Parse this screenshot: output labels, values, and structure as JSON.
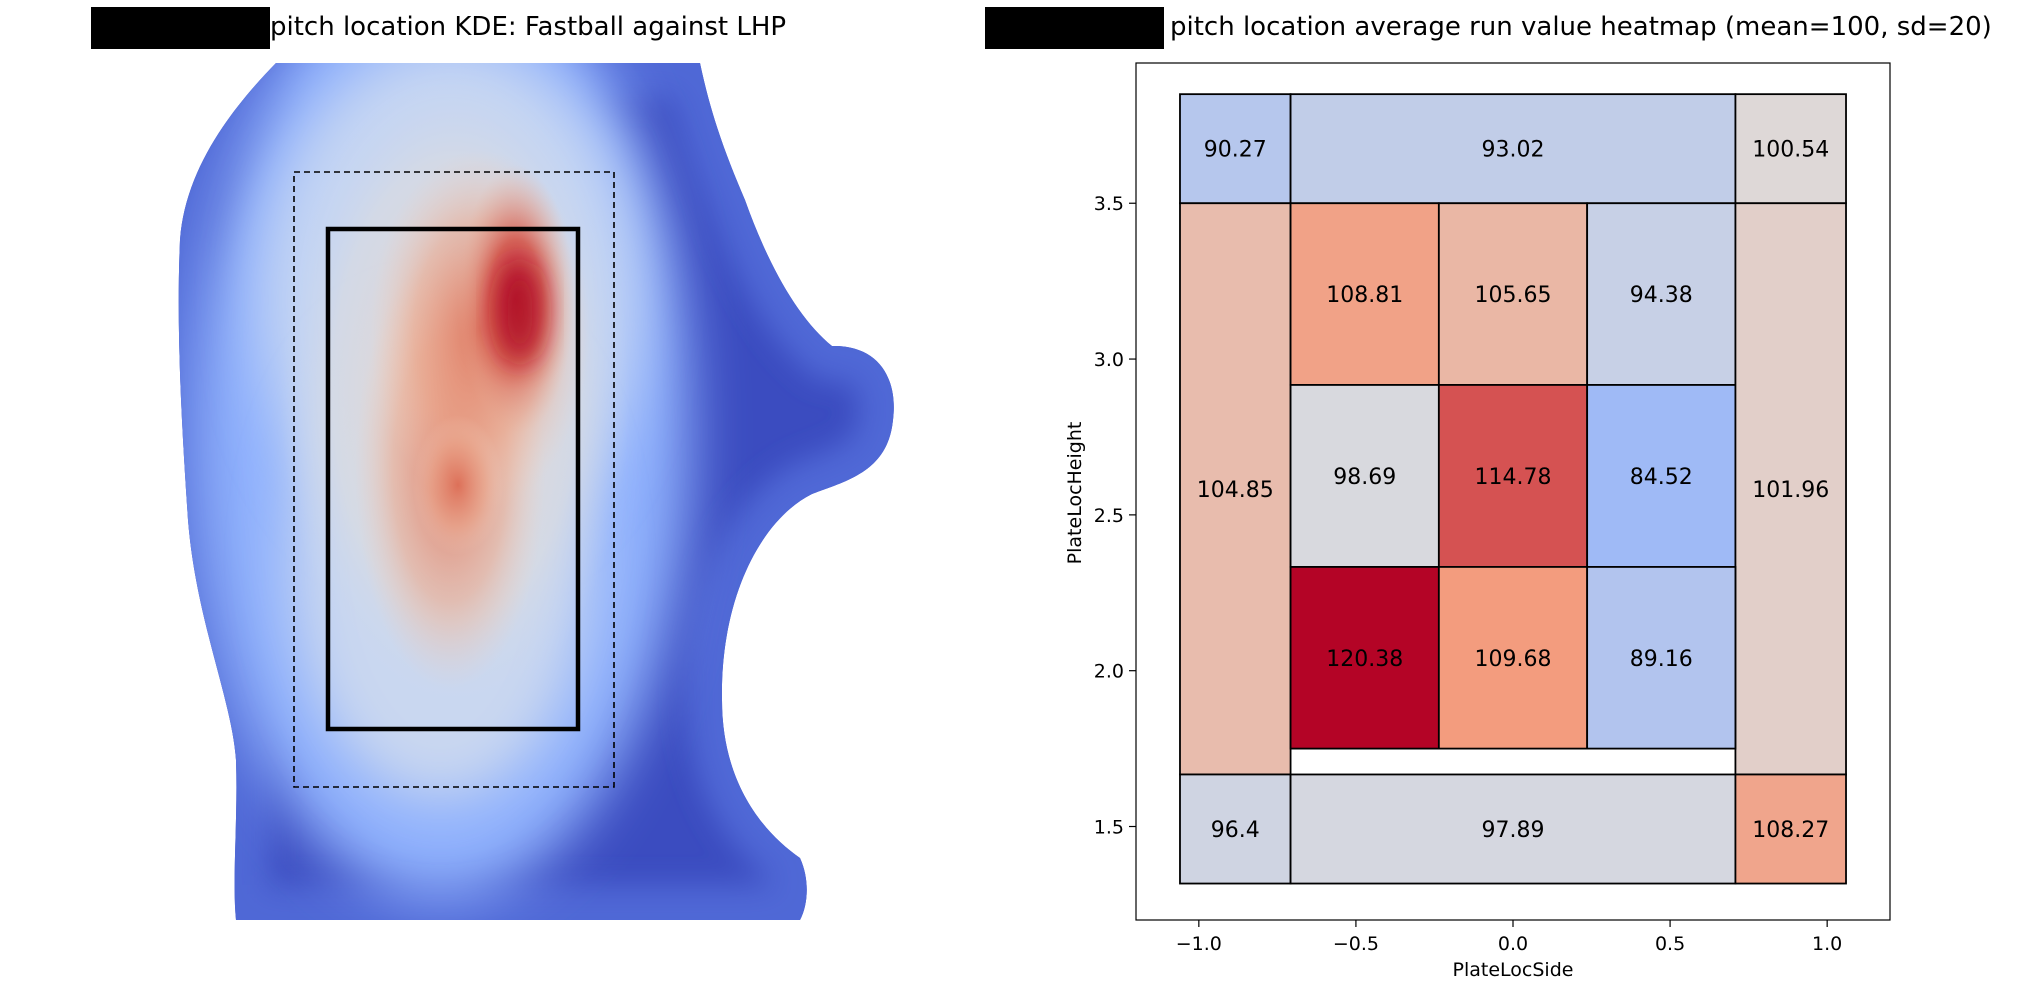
{
  "chart_data": [
    {
      "type": "kde",
      "title": "pitch location KDE: Fastball against LHP",
      "title_prefix_redacted": true,
      "colormap": "coolwarm",
      "strike_zone": true,
      "shadow_zone": true,
      "axes_visible": false
    },
    {
      "type": "heatmap",
      "title": "pitch location average run value heatmap (mean=100, sd=20)",
      "title_prefix_redacted": true,
      "xlabel": "PlateLocSide",
      "ylabel": "PlateLocHeight",
      "xlim": [
        -1.2,
        1.2
      ],
      "ylim": [
        1.2,
        3.95
      ],
      "xticks": [
        "−1.0",
        "−0.5",
        "0.0",
        "0.5",
        "1.0"
      ],
      "xtick_values": [
        -1.0,
        -0.5,
        0.0,
        0.5,
        1.0
      ],
      "yticks": [
        "1.5",
        "2.0",
        "2.5",
        "3.0",
        "3.5"
      ],
      "ytick_values": [
        1.5,
        2.0,
        2.5,
        3.0,
        3.5
      ],
      "colormap": "coolwarm",
      "color_scale": {
        "min": 60,
        "center": 100,
        "max": 120
      },
      "cells": [
        {
          "zone": "11",
          "x": [
            -1.06,
            -0.708
          ],
          "y": [
            3.5,
            3.85
          ],
          "value": 90.27
        },
        {
          "zone": "top",
          "x": [
            -0.708,
            0.708
          ],
          "y": [
            3.5,
            3.85
          ],
          "value": 93.02
        },
        {
          "zone": "12",
          "x": [
            0.708,
            1.06
          ],
          "y": [
            3.5,
            3.85
          ],
          "value": 100.54
        },
        {
          "zone": "left",
          "x": [
            -1.06,
            -0.708
          ],
          "y": [
            1.667,
            3.5
          ],
          "value": 104.85
        },
        {
          "zone": "1",
          "x": [
            -0.708,
            -0.236
          ],
          "y": [
            2.917,
            3.5
          ],
          "value": 108.81
        },
        {
          "zone": "2",
          "x": [
            -0.236,
            0.236
          ],
          "y": [
            2.917,
            3.5
          ],
          "value": 105.65
        },
        {
          "zone": "3",
          "x": [
            0.236,
            0.708
          ],
          "y": [
            2.917,
            3.5
          ],
          "value": 94.38
        },
        {
          "zone": "4",
          "x": [
            -0.708,
            -0.236
          ],
          "y": [
            2.333,
            2.917
          ],
          "value": 98.69
        },
        {
          "zone": "5",
          "x": [
            -0.236,
            0.236
          ],
          "y": [
            2.333,
            2.917
          ],
          "value": 114.78
        },
        {
          "zone": "6",
          "x": [
            0.236,
            0.708
          ],
          "y": [
            2.333,
            2.917
          ],
          "value": 84.52
        },
        {
          "zone": "right",
          "x": [
            0.708,
            1.06
          ],
          "y": [
            1.667,
            3.5
          ],
          "value": 101.96
        },
        {
          "zone": "7",
          "x": [
            -0.708,
            -0.236
          ],
          "y": [
            1.75,
            2.333
          ],
          "value": 120.38
        },
        {
          "zone": "8",
          "x": [
            -0.236,
            0.236
          ],
          "y": [
            1.75,
            2.333
          ],
          "value": 109.68
        },
        {
          "zone": "9",
          "x": [
            0.236,
            0.708
          ],
          "y": [
            1.75,
            2.333
          ],
          "value": 89.16
        },
        {
          "zone": "13",
          "x": [
            -1.06,
            -0.708
          ],
          "y": [
            1.317,
            1.667
          ],
          "value": 96.4
        },
        {
          "zone": "bottom",
          "x": [
            -0.708,
            0.708
          ],
          "y": [
            1.317,
            1.667
          ],
          "value": 97.89
        },
        {
          "zone": "14",
          "x": [
            0.708,
            1.06
          ],
          "y": [
            1.317,
            1.667
          ],
          "value": 108.27
        }
      ],
      "display_labels": [
        "90.27",
        "93.02",
        "100.54",
        "104.85",
        "108.81",
        "105.65",
        "94.38",
        "98.69",
        "114.78",
        "84.52",
        "101.96",
        "120.38",
        "109.68",
        "89.16",
        "96.4",
        "97.89",
        "108.27"
      ]
    }
  ]
}
